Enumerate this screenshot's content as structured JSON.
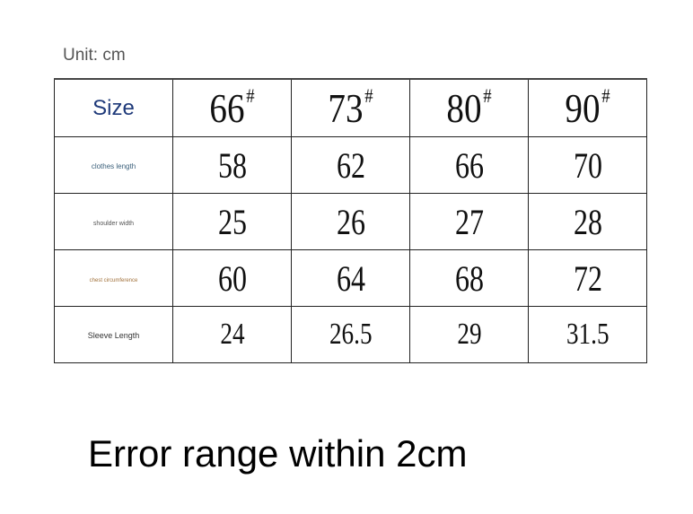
{
  "unit_label": "Unit: cm",
  "table": {
    "header": {
      "label": "Size",
      "sizes": [
        "66",
        "73",
        "80",
        "90"
      ],
      "mark": "#"
    },
    "rows": [
      {
        "label": "clothes length",
        "color": "#3a5f7a",
        "values": [
          "58",
          "62",
          "66",
          "70"
        ]
      },
      {
        "label": "shoulder width",
        "color": "#555555",
        "values": [
          "25",
          "26",
          "27",
          "28"
        ]
      },
      {
        "label": "chest circumference",
        "color": "#a0703a",
        "values": [
          "60",
          "64",
          "68",
          "72"
        ]
      },
      {
        "label": "Sleeve Length",
        "color": "#333333",
        "values": [
          "24",
          "26.5",
          "29",
          "31.5"
        ]
      }
    ]
  },
  "note": "Error range within 2cm"
}
